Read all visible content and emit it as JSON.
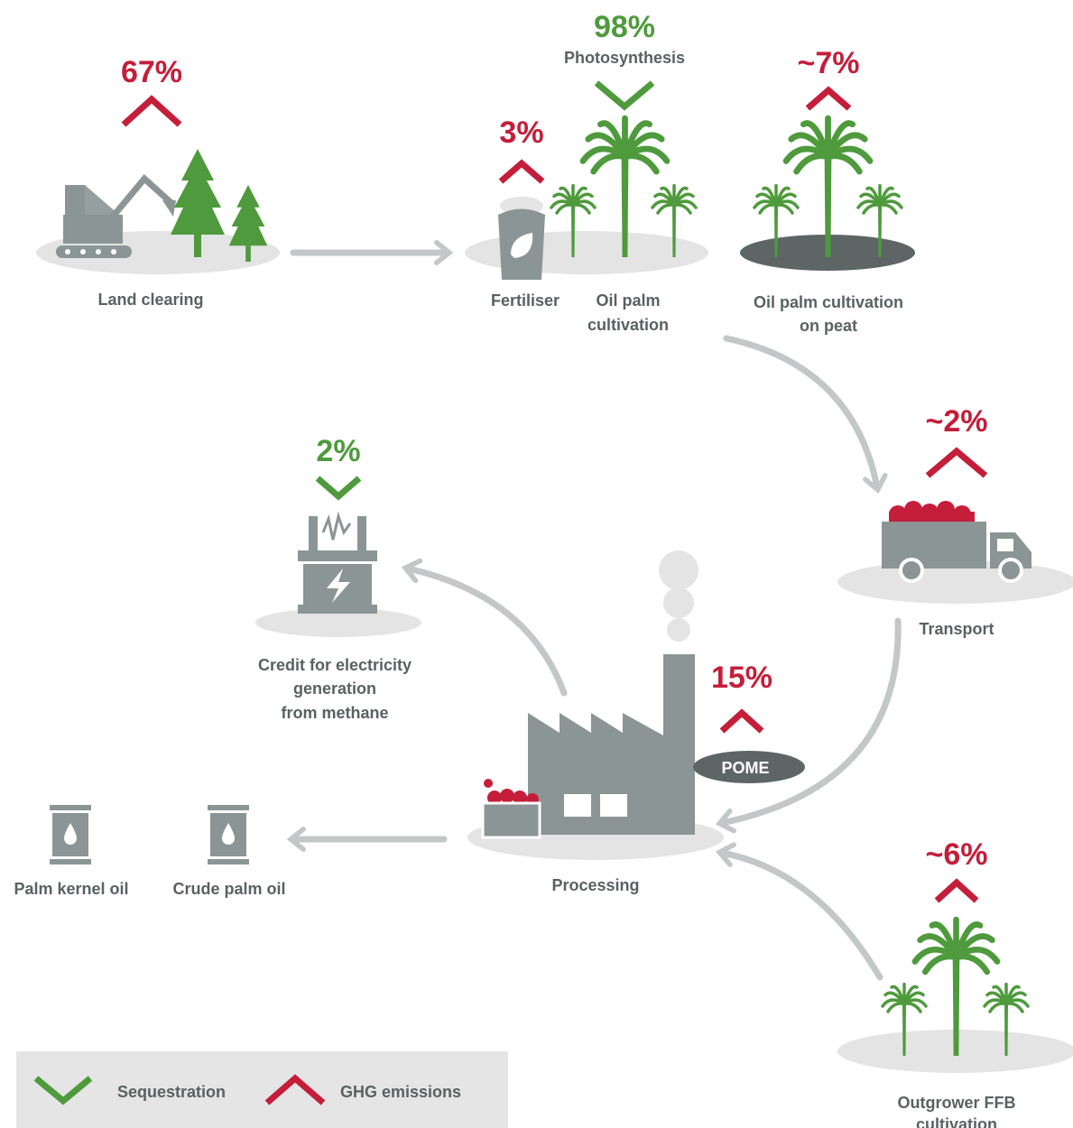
{
  "land_clearing": {
    "value": "67%",
    "label": "Land clearing"
  },
  "photosynthesis": {
    "value": "98%",
    "label": "Photosynthesis"
  },
  "fertiliser": {
    "value": "3%",
    "label": "Fertiliser"
  },
  "oil_palm_cultivation": {
    "label": [
      "Oil palm",
      "cultivation"
    ]
  },
  "peat": {
    "value": "~7%",
    "label": [
      "Oil palm cultivation",
      "on peat"
    ]
  },
  "transport": {
    "value": "~2%",
    "label": "Transport"
  },
  "electricity": {
    "value": "2%",
    "label": [
      "Credit for electricity",
      "generation",
      "from methane"
    ]
  },
  "processing": {
    "value": "15%",
    "pome": "POME",
    "label": "Processing"
  },
  "products": [
    "Palm kernel oil",
    "Crude palm oil"
  ],
  "outgrower": {
    "value": "~6%",
    "label": [
      "Outgrower FFB",
      "cultivation"
    ]
  },
  "legend": [
    "Sequestration",
    "GHG emissions"
  ]
}
